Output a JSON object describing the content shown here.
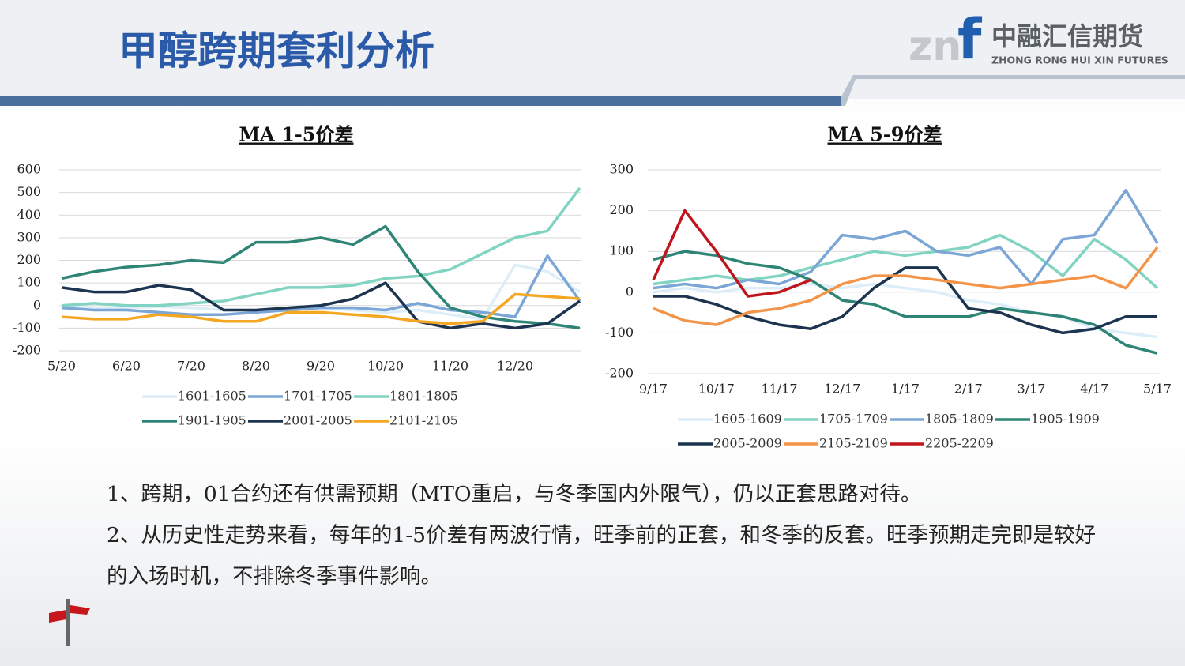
{
  "header": {
    "title": "甲醇跨期套利分析",
    "logo_mark_a": "zn",
    "logo_mark_b": "f",
    "logo_cn": "中融汇信期货",
    "logo_en": "ZHONG RONG HUI XIN FUTURES"
  },
  "chart_data": [
    {
      "type": "line",
      "title": "MA 1-5价差",
      "categories": [
        "5/20",
        null,
        "6/20",
        null,
        "7/20",
        null,
        "8/20",
        null,
        "9/20",
        null,
        "10/20",
        null,
        "11/20",
        null,
        "12/20",
        null,
        null
      ],
      "ylim": [
        -200,
        600
      ],
      "yticks": [
        -200,
        -100,
        0,
        100,
        200,
        300,
        400,
        500,
        600
      ],
      "grid": true,
      "series": [
        {
          "name": "1601-1605",
          "color": "#ddeef8",
          "values": [
            0,
            -10,
            -10,
            -5,
            -10,
            -20,
            -20,
            -10,
            -10,
            -20,
            -30,
            -20,
            -40,
            -60,
            180,
            150,
            60
          ]
        },
        {
          "name": "1701-1705",
          "color": "#7ba6d6",
          "values": [
            -10,
            -20,
            -20,
            -30,
            -40,
            -40,
            -30,
            -20,
            -10,
            -10,
            -20,
            10,
            -20,
            -30,
            -50,
            220,
            20
          ]
        },
        {
          "name": "1801-1805",
          "color": "#80d4c1",
          "values": [
            0,
            10,
            0,
            0,
            10,
            20,
            50,
            80,
            80,
            90,
            120,
            130,
            160,
            230,
            300,
            330,
            520
          ]
        },
        {
          "name": "1901-1905",
          "color": "#2e8575",
          "values": [
            120,
            150,
            170,
            180,
            200,
            190,
            280,
            280,
            300,
            270,
            350,
            150,
            -10,
            -50,
            -70,
            -80,
            -100
          ]
        },
        {
          "name": "2001-2005",
          "color": "#1d3451",
          "values": [
            80,
            60,
            60,
            90,
            70,
            -20,
            -20,
            -10,
            0,
            30,
            100,
            -70,
            -100,
            -80,
            -100,
            -80,
            20
          ]
        },
        {
          "name": "2101-2105",
          "color": "#f5a623",
          "values": [
            -50,
            -60,
            -60,
            -40,
            -50,
            -70,
            -70,
            -30,
            -30,
            -40,
            -50,
            -70,
            -80,
            -70,
            50,
            40,
            30
          ]
        }
      ]
    },
    {
      "type": "line",
      "title": "MA 5-9价差",
      "categories": [
        "9/17",
        null,
        "10/17",
        null,
        "11/17",
        null,
        "12/17",
        null,
        "1/17",
        null,
        "2/17",
        null,
        "3/17",
        null,
        "4/17",
        null,
        "5/17"
      ],
      "ylim": [
        -200,
        300
      ],
      "yticks": [
        -200,
        -100,
        0,
        100,
        200,
        300
      ],
      "grid": true,
      "series": [
        {
          "name": "1605-1609",
          "color": "#ddeef8",
          "values": [
            0,
            10,
            0,
            10,
            10,
            20,
            10,
            20,
            10,
            0,
            -20,
            -30,
            -50,
            -60,
            -90,
            -100,
            -110
          ]
        },
        {
          "name": "1705-1709",
          "color": "#80d4c1",
          "values": [
            20,
            30,
            40,
            30,
            40,
            60,
            80,
            100,
            90,
            100,
            110,
            140,
            100,
            40,
            130,
            80,
            10
          ]
        },
        {
          "name": "1805-1809",
          "color": "#7ba6d6",
          "values": [
            10,
            20,
            10,
            30,
            20,
            50,
            140,
            130,
            150,
            100,
            90,
            110,
            20,
            130,
            140,
            250,
            120
          ]
        },
        {
          "name": "1905-1909",
          "color": "#2e8575",
          "values": [
            80,
            100,
            90,
            70,
            60,
            30,
            -20,
            -30,
            -60,
            -60,
            -60,
            -40,
            -50,
            -60,
            -80,
            -130,
            -150
          ]
        },
        {
          "name": "2005-2009",
          "color": "#1d3451",
          "values": [
            -10,
            -10,
            -30,
            -60,
            -80,
            -90,
            -60,
            10,
            60,
            60,
            -40,
            -50,
            -80,
            -100,
            -90,
            -60,
            -60
          ]
        },
        {
          "name": "2105-2109",
          "color": "#f39449",
          "values": [
            -40,
            -70,
            -80,
            -50,
            -40,
            -20,
            20,
            40,
            40,
            30,
            20,
            10,
            20,
            30,
            40,
            10,
            110
          ]
        },
        {
          "name": "2205-2209",
          "color": "#c0141c",
          "values": [
            30,
            200,
            100,
            -10,
            0,
            30,
            null,
            null,
            null,
            null,
            null,
            null,
            null,
            null,
            null,
            null,
            null
          ]
        }
      ]
    }
  ],
  "notes": [
    "1、跨期，01合约还有供需预期（MTO重启，与冬季国内外限气），仍以正套思路对待。",
    "2、从历史性走势来看，每年的1-5价差有两波行情，旺季前的正套，和冬季的反套。旺季预期走完即是较好的入场时机，不排除冬季事件影响。"
  ]
}
